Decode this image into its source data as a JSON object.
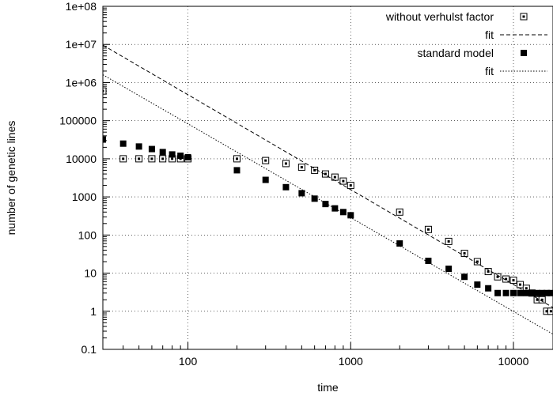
{
  "chart_data": {
    "type": "scatter",
    "xlabel": "time",
    "ylabel": "number of genetic lines",
    "x_scale": "log",
    "y_scale": "log",
    "xlim": [
      30,
      17500
    ],
    "ylim": [
      0.1,
      100000000
    ],
    "grid": true,
    "legend_position": "top-right",
    "x_ticks": [
      {
        "value": 100,
        "label": "100"
      },
      {
        "value": 1000,
        "label": "1000"
      },
      {
        "value": 10000,
        "label": "10000"
      }
    ],
    "y_ticks": [
      {
        "value": 0.1,
        "label": "0.1"
      },
      {
        "value": 1,
        "label": "1"
      },
      {
        "value": 10,
        "label": "10"
      },
      {
        "value": 100,
        "label": "100"
      },
      {
        "value": 1000,
        "label": "1000"
      },
      {
        "value": 10000,
        "label": "10000"
      },
      {
        "value": 100000,
        "label": "100000"
      },
      {
        "value": 1000000,
        "label": "1e+06"
      },
      {
        "value": 10000000,
        "label": "1e+07"
      },
      {
        "value": 100000000,
        "label": "1e+08"
      }
    ],
    "series": [
      {
        "name": "without verhulst factor",
        "marker": "open-square",
        "x": [
          30,
          40,
          50,
          60,
          70,
          80,
          90,
          100,
          200,
          300,
          400,
          500,
          600,
          700,
          800,
          900,
          1000,
          2000,
          3000,
          4000,
          5000,
          6000,
          7000,
          8000,
          9000,
          10000,
          11000,
          12000,
          13000,
          14000,
          15000,
          16000,
          17000
        ],
        "y": [
          600000,
          10000,
          10000,
          10000,
          10000,
          10000,
          10000,
          10000,
          10000,
          9000,
          7500,
          6000,
          5000,
          4000,
          3300,
          2600,
          2000,
          400,
          140,
          68,
          33,
          20,
          11,
          8,
          7,
          6.5,
          5,
          4,
          3,
          2,
          2,
          1,
          1
        ]
      },
      {
        "name": "fit",
        "style": "dashed",
        "x": [
          30,
          17500
        ],
        "y": [
          9600000,
          1.25
        ]
      },
      {
        "name": "standard model",
        "marker": "filled-square",
        "x": [
          30,
          40,
          50,
          60,
          70,
          80,
          90,
          100,
          200,
          300,
          400,
          500,
          600,
          700,
          800,
          900,
          1000,
          2000,
          3000,
          4000,
          5000,
          6000,
          7000,
          8000,
          9000,
          10000,
          11000,
          12000,
          13000,
          14000,
          15000,
          16000,
          17000
        ],
        "y": [
          32000,
          25000,
          21000,
          18000,
          15000,
          13000,
          12000,
          11000,
          5000,
          2800,
          1800,
          1250,
          900,
          650,
          500,
          400,
          330,
          60,
          21,
          13,
          8,
          5,
          4,
          3,
          3,
          3,
          3,
          3,
          3,
          3,
          3,
          3,
          3
        ]
      },
      {
        "name": "fit",
        "style": "dotted",
        "x": [
          30,
          17500
        ],
        "y": [
          1600000,
          0.25
        ]
      }
    ]
  }
}
